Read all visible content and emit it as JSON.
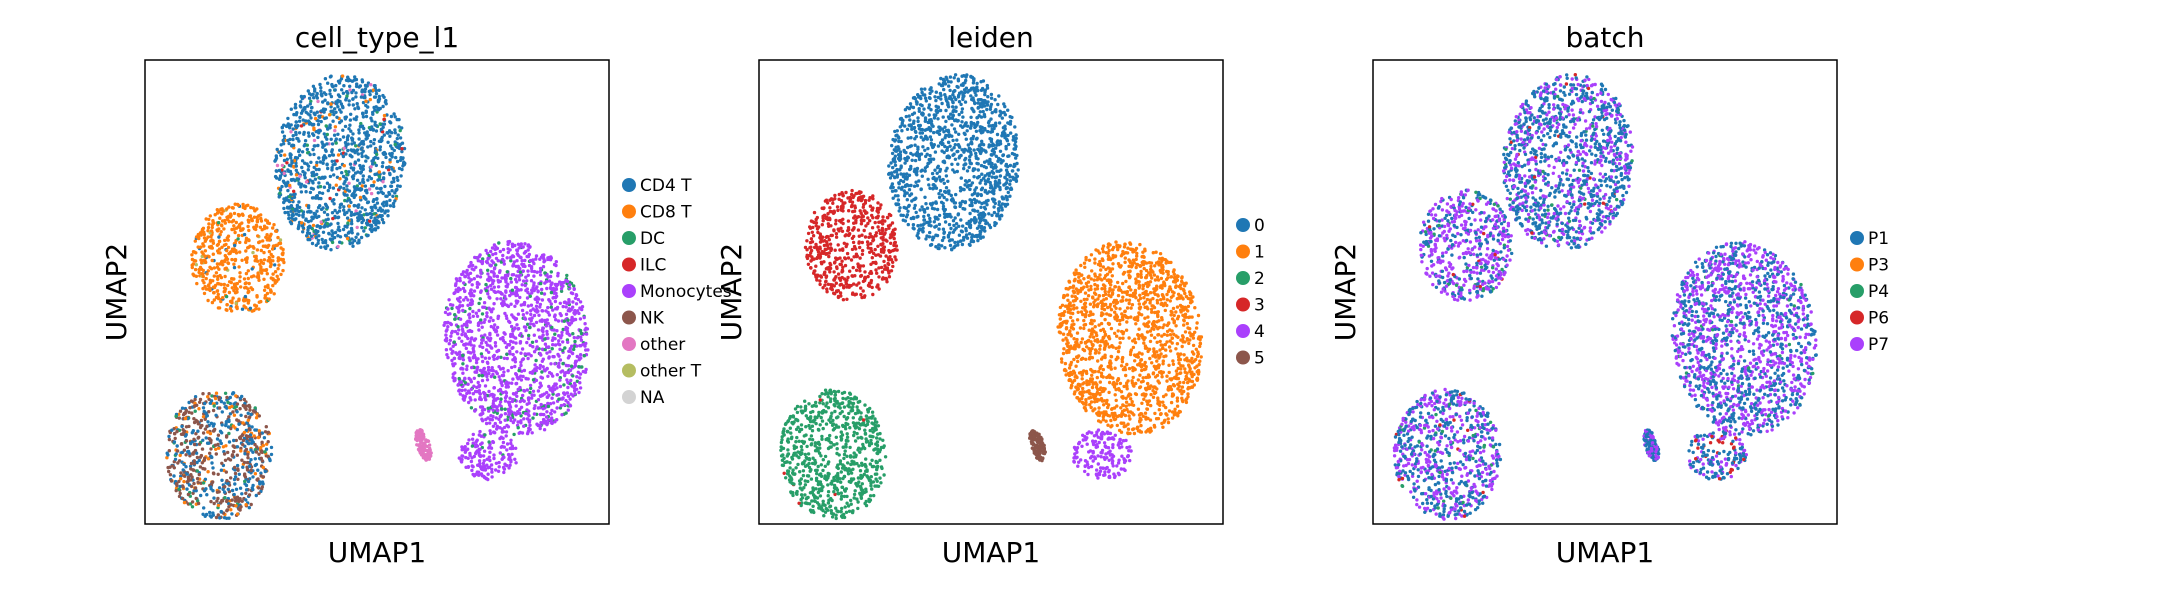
{
  "chart_data": [
    {
      "type": "scatter",
      "title": "cell_type_l1",
      "xlabel": "UMAP1",
      "ylabel": "UMAP2",
      "legend_placement": "right-outside",
      "legend": [
        {
          "label": "CD4 T",
          "color": "#1f77b4"
        },
        {
          "label": "CD8 T",
          "color": "#ff7f0e"
        },
        {
          "label": "DC",
          "color": "#279e68"
        },
        {
          "label": "ILC",
          "color": "#d62728"
        },
        {
          "label": "Monocytes",
          "color": "#aa40fc"
        },
        {
          "label": "NK",
          "color": "#8c564b"
        },
        {
          "label": "other",
          "color": "#e377c2"
        },
        {
          "label": "other T",
          "color": "#b5bd61"
        },
        {
          "label": "NA",
          "color": "#d3d3d3"
        }
      ],
      "clusters": [
        {
          "x": 0.42,
          "y": 0.78,
          "rx": 0.14,
          "ry": 0.19,
          "rot": -0.12,
          "base": "#1f77b4",
          "mix": [
            [
              "#ff7f0e",
              0.04
            ],
            [
              "#279e68",
              0.05
            ],
            [
              "#e377c2",
              0.03
            ],
            [
              "#d62728",
              0.01
            ]
          ]
        },
        {
          "x": 0.2,
          "y": 0.57,
          "rx": 0.1,
          "ry": 0.12,
          "rot": 0.0,
          "base": "#ff7f0e",
          "mix": [
            [
              "#1f77b4",
              0.05
            ],
            [
              "#b5bd61",
              0.03
            ],
            [
              "#279e68",
              0.01
            ]
          ]
        },
        {
          "x": 0.8,
          "y": 0.4,
          "rx": 0.155,
          "ry": 0.21,
          "rot": 0.12,
          "base": "#aa40fc",
          "mix": [
            [
              "#279e68",
              0.12
            ]
          ]
        },
        {
          "x": 0.16,
          "y": 0.15,
          "rx": 0.115,
          "ry": 0.14,
          "rot": 0.05,
          "base": "#8c564b",
          "mix": [
            [
              "#1f77b4",
              0.35
            ],
            [
              "#ff7f0e",
              0.12
            ],
            [
              "#279e68",
              0.04
            ]
          ]
        },
        {
          "x": 0.74,
          "y": 0.15,
          "rx": 0.065,
          "ry": 0.055,
          "rot": 0.0,
          "base": "#aa40fc",
          "mix": [
            [
              "#279e68",
              0.03
            ]
          ]
        },
        {
          "x": 0.6,
          "y": 0.17,
          "rx": 0.014,
          "ry": 0.035,
          "rot": 0.3,
          "base": "#e377c2",
          "mix": []
        }
      ]
    },
    {
      "type": "scatter",
      "title": "leiden",
      "xlabel": "UMAP1",
      "ylabel": "UMAP2",
      "legend_placement": "right-outside",
      "legend": [
        {
          "label": "0",
          "color": "#1f77b4"
        },
        {
          "label": "1",
          "color": "#ff7f0e"
        },
        {
          "label": "2",
          "color": "#279e68"
        },
        {
          "label": "3",
          "color": "#d62728"
        },
        {
          "label": "4",
          "color": "#aa40fc"
        },
        {
          "label": "5",
          "color": "#8c564b"
        }
      ],
      "clusters": [
        {
          "x": 0.42,
          "y": 0.78,
          "rx": 0.14,
          "ry": 0.19,
          "rot": -0.12,
          "base": "#1f77b4",
          "mix": []
        },
        {
          "x": 0.2,
          "y": 0.6,
          "rx": 0.1,
          "ry": 0.12,
          "rot": 0.0,
          "base": "#d62728",
          "mix": []
        },
        {
          "x": 0.8,
          "y": 0.4,
          "rx": 0.155,
          "ry": 0.21,
          "rot": 0.12,
          "base": "#ff7f0e",
          "mix": []
        },
        {
          "x": 0.16,
          "y": 0.15,
          "rx": 0.115,
          "ry": 0.14,
          "rot": 0.05,
          "base": "#279e68",
          "mix": [
            [
              "#d62728",
              0.01
            ]
          ]
        },
        {
          "x": 0.74,
          "y": 0.15,
          "rx": 0.065,
          "ry": 0.055,
          "rot": 0.0,
          "base": "#aa40fc",
          "mix": []
        },
        {
          "x": 0.6,
          "y": 0.17,
          "rx": 0.014,
          "ry": 0.035,
          "rot": 0.3,
          "base": "#8c564b",
          "mix": []
        }
      ]
    },
    {
      "type": "scatter",
      "title": "batch",
      "xlabel": "UMAP1",
      "ylabel": "UMAP2",
      "legend_placement": "right-outside",
      "legend": [
        {
          "label": "P1",
          "color": "#1f77b4"
        },
        {
          "label": "P3",
          "color": "#ff7f0e"
        },
        {
          "label": "P4",
          "color": "#279e68"
        },
        {
          "label": "P6",
          "color": "#d62728"
        },
        {
          "label": "P7",
          "color": "#aa40fc"
        }
      ],
      "clusters": [
        {
          "x": 0.42,
          "y": 0.78,
          "rx": 0.14,
          "ry": 0.19,
          "rot": -0.12,
          "base": "#1f77b4",
          "mix": [
            [
              "#aa40fc",
              0.35
            ],
            [
              "#d62728",
              0.02
            ],
            [
              "#279e68",
              0.03
            ]
          ]
        },
        {
          "x": 0.2,
          "y": 0.6,
          "rx": 0.1,
          "ry": 0.12,
          "rot": 0.0,
          "base": "#aa40fc",
          "mix": [
            [
              "#1f77b4",
              0.35
            ],
            [
              "#279e68",
              0.06
            ],
            [
              "#d62728",
              0.02
            ]
          ]
        },
        {
          "x": 0.8,
          "y": 0.4,
          "rx": 0.155,
          "ry": 0.21,
          "rot": 0.12,
          "base": "#aa40fc",
          "mix": [
            [
              "#1f77b4",
              0.45
            ],
            [
              "#279e68",
              0.02
            ]
          ]
        },
        {
          "x": 0.16,
          "y": 0.15,
          "rx": 0.115,
          "ry": 0.14,
          "rot": 0.05,
          "base": "#1f77b4",
          "mix": [
            [
              "#aa40fc",
              0.45
            ],
            [
              "#279e68",
              0.03
            ],
            [
              "#d62728",
              0.02
            ]
          ]
        },
        {
          "x": 0.74,
          "y": 0.15,
          "rx": 0.065,
          "ry": 0.055,
          "rot": 0.0,
          "base": "#1f77b4",
          "mix": [
            [
              "#aa40fc",
              0.25
            ],
            [
              "#d62728",
              0.15
            ]
          ]
        },
        {
          "x": 0.6,
          "y": 0.17,
          "rx": 0.014,
          "ry": 0.035,
          "rot": 0.3,
          "base": "#1f77b4",
          "mix": [
            [
              "#aa40fc",
              0.3
            ]
          ]
        }
      ]
    }
  ]
}
